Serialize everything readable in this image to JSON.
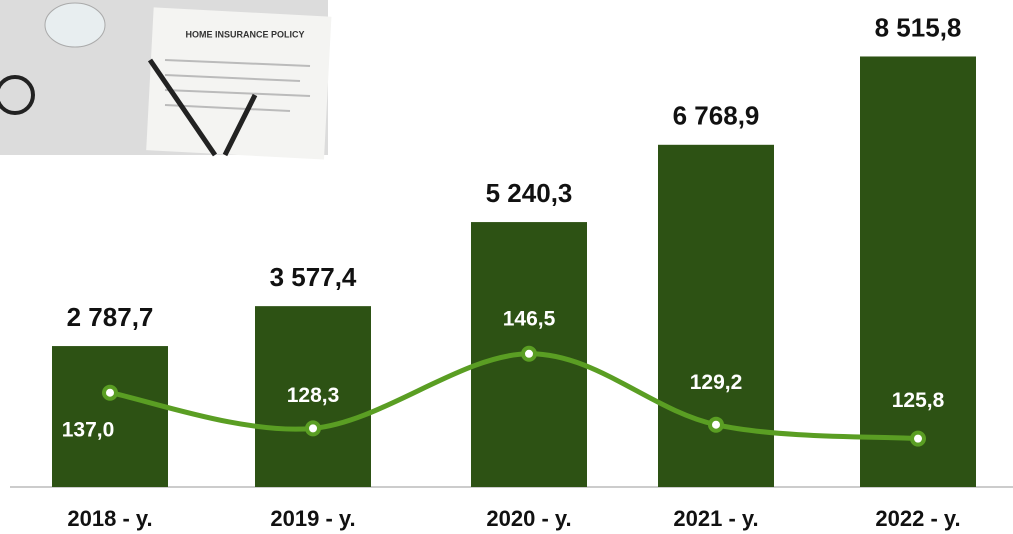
{
  "chart_data": {
    "type": "bar-line",
    "annotations": [
      "HOME INSURANCE POLICY"
    ],
    "categories": [
      "2018 - y.",
      "2019 - y.",
      "2020 - y.",
      "2021 - y.",
      "2022 - y."
    ],
    "series": [
      {
        "type": "bar",
        "color": "#2d5214",
        "values": [
          2787.7,
          3577.4,
          5240.3,
          6768.9,
          8515.8
        ],
        "value_labels": [
          "2 787,7",
          "3 577,4",
          "5 240,3",
          "6 768,9",
          "8 515,8"
        ]
      },
      {
        "type": "line",
        "axis": "y2",
        "color": "#5a9e23",
        "values": [
          137.0,
          128.3,
          146.5,
          129.2,
          125.8
        ],
        "value_labels": [
          "137,0",
          "128,3",
          "146,5",
          "129,2",
          "125,8"
        ]
      }
    ],
    "ylim": [
      0,
      9000
    ],
    "y2lim": [
      114,
      225
    ]
  }
}
